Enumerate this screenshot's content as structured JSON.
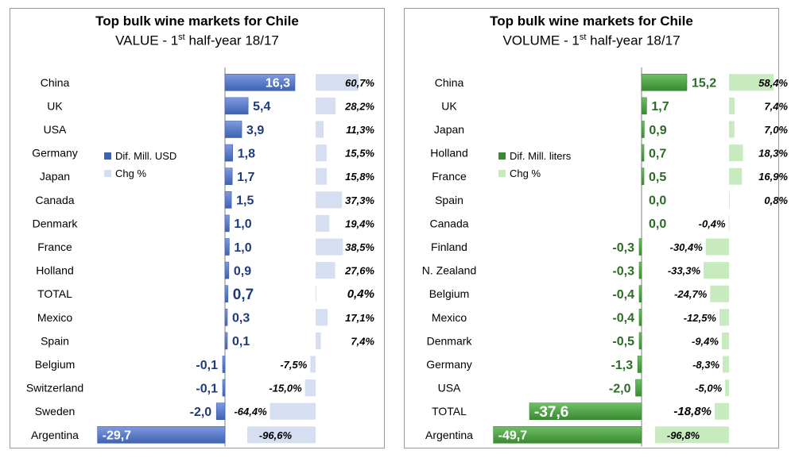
{
  "colors": {
    "value_bar": "#3e62b2",
    "value_bar_light": "#7f9ae0",
    "value_chg": "#d6def2",
    "volume_bar": "#3b8a33",
    "volume_bar_light": "#6fbf66",
    "volume_chg": "#c7ebbf",
    "axis": "#7f7f7f"
  },
  "chart_data": [
    {
      "type": "bar",
      "title": "Top bulk wine markets for Chile",
      "subtitle_pre": "VALUE - 1",
      "subtitle_sup": "st",
      "subtitle_post": " half-year 18/17",
      "legend_placement": "middle-left",
      "categories": [
        "China",
        "UK",
        "USA",
        "Germany",
        "Japan",
        "Canada",
        "Denmark",
        "France",
        "Holland",
        "TOTAL",
        "Mexico",
        "Spain",
        "Belgium",
        "Switzerland",
        "Sweden",
        "Argentina"
      ],
      "series": [
        {
          "name": "Dif. Mill. USD",
          "values": [
            16.3,
            5.4,
            3.9,
            1.8,
            1.7,
            1.5,
            1.0,
            1.0,
            0.9,
            0.7,
            0.3,
            0.1,
            -0.1,
            -0.1,
            -2.0,
            -29.7
          ],
          "labels": [
            "16,3",
            "5,4",
            "3,9",
            "1,8",
            "1,7",
            "1,5",
            "1,0",
            "1,0",
            "0,9",
            "0,7",
            "0,3",
            "0,1",
            "-0,1",
            "-0,1",
            "-2,0",
            "-29,7"
          ]
        },
        {
          "name": "Chg %",
          "values": [
            60.7,
            28.2,
            11.3,
            15.5,
            15.8,
            37.3,
            19.4,
            38.5,
            27.6,
            0.4,
            17.1,
            7.4,
            -7.5,
            -15.0,
            -64.4,
            -96.6
          ],
          "labels": [
            "60,7%",
            "28,2%",
            "11,3%",
            "15,5%",
            "15,8%",
            "37,3%",
            "19,4%",
            "38,5%",
            "27,6%",
            "0,4%",
            "17,1%",
            "7,4%",
            "-7,5%",
            "-15,0%",
            "-64,4%",
            "-96,6%"
          ]
        }
      ]
    },
    {
      "type": "bar",
      "title": "Top bulk wine markets for Chile",
      "subtitle_pre": "VOLUME - 1",
      "subtitle_sup": "st",
      "subtitle_post": " half-year 18/17",
      "legend_placement": "middle-left",
      "categories": [
        "China",
        "UK",
        "Japan",
        "Holland",
        "France",
        "Spain",
        "Canada",
        "Finland",
        "N. Zealand",
        "Belgium",
        "Mexico",
        "Denmark",
        "Germany",
        "USA",
        "TOTAL",
        "Argentina"
      ],
      "series": [
        {
          "name": "Dif. Mill. liters",
          "values": [
            15.2,
            1.7,
            0.9,
            0.7,
            0.5,
            0.0,
            0.0,
            -0.3,
            -0.3,
            -0.4,
            -0.4,
            -0.5,
            -1.3,
            -2.0,
            -37.6,
            -49.7
          ],
          "labels": [
            "15,2",
            "1,7",
            "0,9",
            "0,7",
            "0,5",
            "0,0",
            "0,0",
            "-0,3",
            "-0,3",
            "-0,4",
            "-0,4",
            "-0,5",
            "-1,3",
            "-2,0",
            "-37,6",
            "-49,7"
          ]
        },
        {
          "name": "Chg %",
          "values": [
            58.4,
            7.4,
            7.0,
            18.3,
            16.9,
            0.8,
            -0.4,
            -30.4,
            -33.3,
            -24.7,
            -12.5,
            -9.4,
            -8.3,
            -5.0,
            -18.8,
            -96.8
          ],
          "labels": [
            "58,4%",
            "7,4%",
            "7,0%",
            "18,3%",
            "16,9%",
            "0,8%",
            "-0,4%",
            "-30,4%",
            "-33,3%",
            "-24,7%",
            "-12,5%",
            "-9,4%",
            "-8,3%",
            "-5,0%",
            "-18,8%",
            "-96,8%"
          ]
        }
      ]
    }
  ]
}
